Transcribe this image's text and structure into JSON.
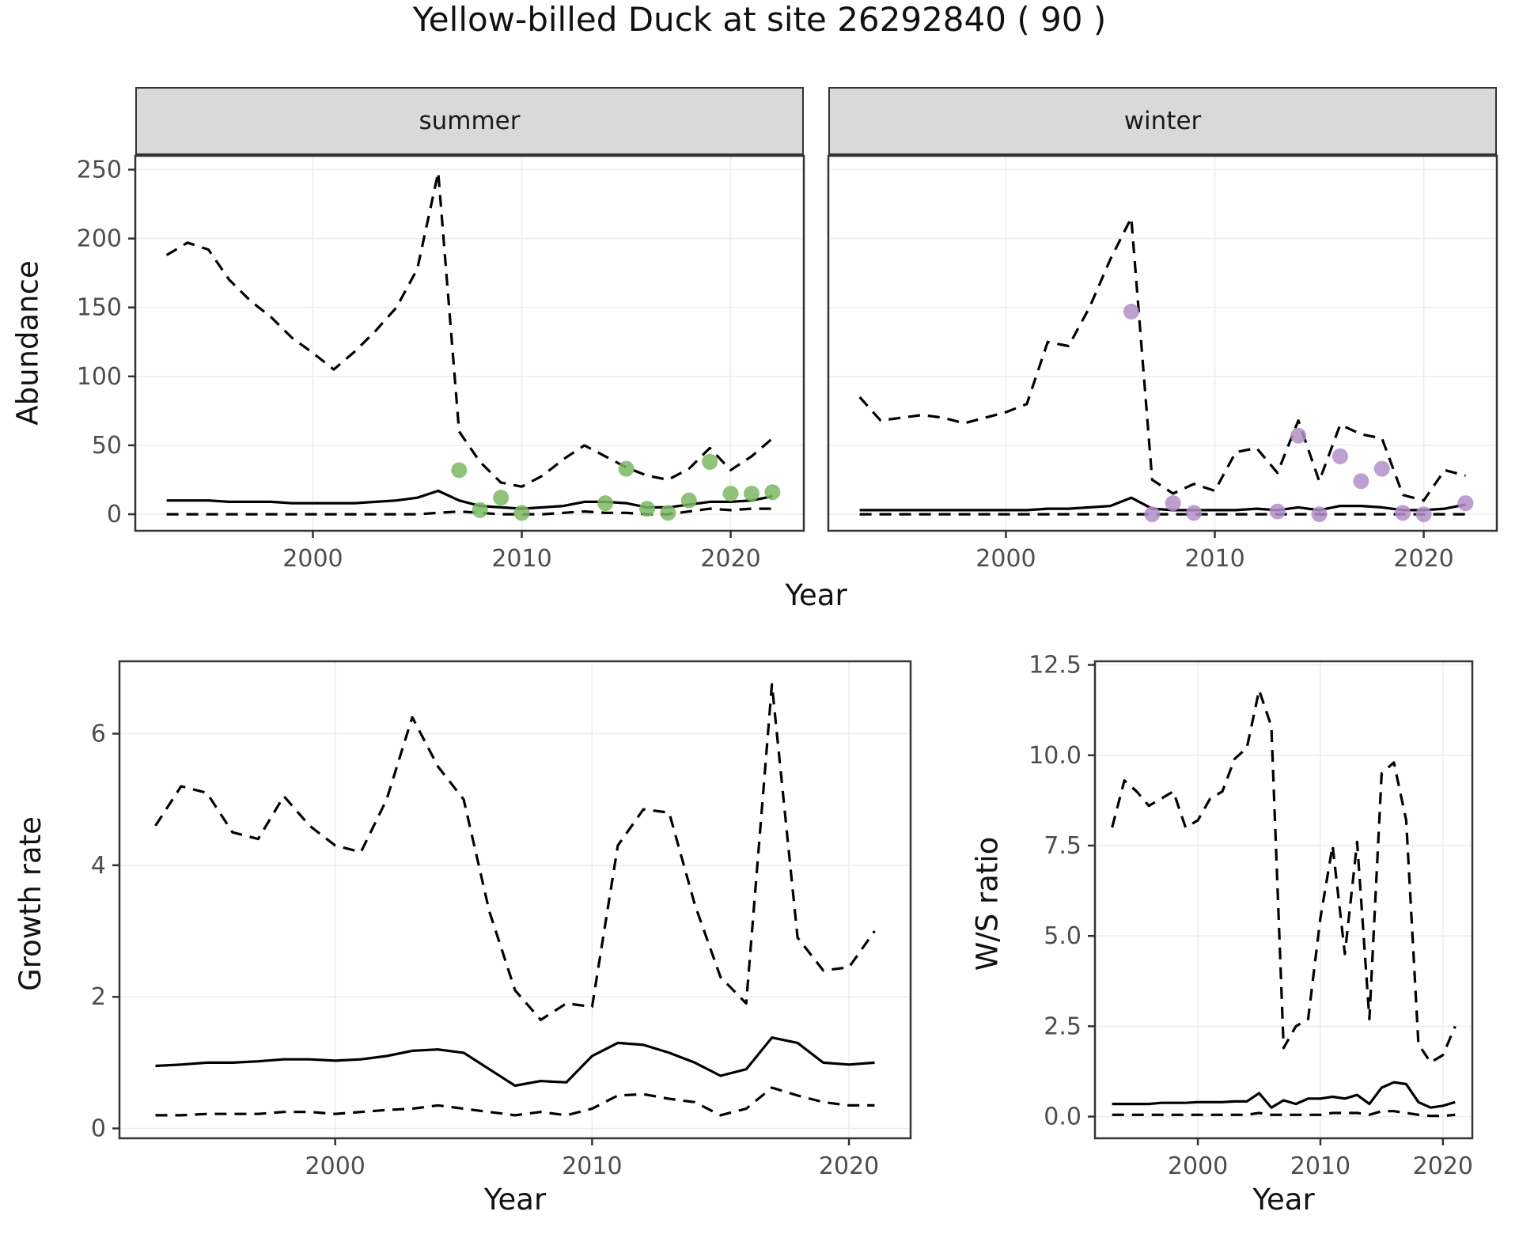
{
  "title": "Yellow-billed Duck at site 26292840 ( 90 )",
  "abundance": {
    "ylabel": "Abundance",
    "xlabel": "Year",
    "facets": [
      "summer",
      "winter"
    ]
  },
  "growth": {
    "ylabel": "Growth rate",
    "xlabel": "Year"
  },
  "ws": {
    "ylabel": "W/S ratio",
    "xlabel": "Year"
  },
  "colors": {
    "summer_points": "#7bb861",
    "winter_points": "#b18fc8",
    "line": "#000000",
    "strip_background": "#d9d9d9",
    "panel_border": "#333333",
    "grid": "#ececec",
    "tick_text": "#4d4d4d"
  },
  "chart_data": [
    {
      "type": "line",
      "title": "summer",
      "xlabel": "Year",
      "ylabel": "Abundance",
      "xlim": [
        1991.5,
        2023.5
      ],
      "ylim": [
        -12,
        260
      ],
      "xticks": [
        2000,
        2010,
        2020
      ],
      "xtick_labels": [
        "2000",
        "2010",
        "2020"
      ],
      "yticks": [
        0,
        50,
        100,
        150,
        200,
        250
      ],
      "ytick_labels": [
        "0",
        "50",
        "100",
        "150",
        "200",
        "250"
      ],
      "series": [
        {
          "name": "upper_ci",
          "style": "dashed",
          "color": "#000000",
          "x": [
            1993,
            1994,
            1995,
            1996,
            1997,
            1998,
            1999,
            2000,
            2001,
            2002,
            2003,
            2004,
            2005,
            2006,
            2007,
            2008,
            2009,
            2010,
            2011,
            2012,
            2013,
            2014,
            2015,
            2016,
            2017,
            2018,
            2019,
            2020,
            2021,
            2022
          ],
          "y": [
            188,
            197,
            192,
            170,
            155,
            143,
            128,
            117,
            105,
            118,
            133,
            150,
            178,
            248,
            60,
            38,
            23,
            20,
            28,
            40,
            50,
            42,
            34,
            28,
            25,
            33,
            48,
            32,
            42,
            55
          ]
        },
        {
          "name": "median",
          "style": "solid",
          "color": "#000000",
          "x": [
            1993,
            1994,
            1995,
            1996,
            1997,
            1998,
            1999,
            2000,
            2001,
            2002,
            2003,
            2004,
            2005,
            2006,
            2007,
            2008,
            2009,
            2010,
            2011,
            2012,
            2013,
            2014,
            2015,
            2016,
            2017,
            2018,
            2019,
            2020,
            2021,
            2022
          ],
          "y": [
            10,
            10,
            10,
            9,
            9,
            9,
            8,
            8,
            8,
            8,
            9,
            10,
            12,
            17,
            10,
            6,
            5,
            4,
            5,
            6,
            9,
            9,
            8,
            5,
            5,
            7,
            9,
            9,
            10,
            13
          ]
        },
        {
          "name": "lower_ci",
          "style": "dashed",
          "color": "#000000",
          "x": [
            1993,
            1994,
            1995,
            1996,
            1997,
            1998,
            1999,
            2000,
            2001,
            2002,
            2003,
            2004,
            2005,
            2006,
            2007,
            2008,
            2009,
            2010,
            2011,
            2012,
            2013,
            2014,
            2015,
            2016,
            2017,
            2018,
            2019,
            2020,
            2021,
            2022
          ],
          "y": [
            0,
            0,
            0,
            0,
            0,
            0,
            0,
            0,
            0,
            0,
            0,
            0,
            0,
            1,
            2,
            1,
            0,
            0,
            0,
            1,
            2,
            1,
            1,
            0,
            0,
            2,
            4,
            3,
            4,
            4
          ]
        },
        {
          "name": "observed_counts",
          "style": "points",
          "color": "#7bb861",
          "x": [
            2007,
            2008,
            2009,
            2010,
            2014,
            2015,
            2016,
            2017,
            2018,
            2019,
            2020,
            2021,
            2022
          ],
          "y": [
            32,
            3,
            12,
            1,
            8,
            33,
            4,
            1,
            10,
            38,
            15,
            15,
            16
          ]
        }
      ]
    },
    {
      "type": "line",
      "title": "winter",
      "xlabel": "Year",
      "ylabel": "Abundance",
      "xlim": [
        1991.5,
        2023.5
      ],
      "ylim": [
        -12,
        260
      ],
      "xticks": [
        2000,
        2010,
        2020
      ],
      "xtick_labels": [
        "2000",
        "2010",
        "2020"
      ],
      "yticks": [
        0,
        50,
        100,
        150,
        200,
        250
      ],
      "ytick_labels": [
        "0",
        "50",
        "100",
        "150",
        "200",
        "250"
      ],
      "series": [
        {
          "name": "upper_ci",
          "style": "dashed",
          "color": "#000000",
          "x": [
            1993,
            1994,
            1995,
            1996,
            1997,
            1998,
            1999,
            2000,
            2001,
            2002,
            2003,
            2004,
            2005,
            2006,
            2007,
            2008,
            2009,
            2010,
            2011,
            2012,
            2013,
            2014,
            2015,
            2016,
            2017,
            2018,
            2019,
            2020,
            2021,
            2022
          ],
          "y": [
            85,
            68,
            70,
            72,
            70,
            66,
            70,
            74,
            80,
            125,
            122,
            150,
            185,
            215,
            25,
            15,
            22,
            17,
            45,
            48,
            30,
            68,
            24,
            65,
            58,
            55,
            14,
            10,
            32,
            28
          ]
        },
        {
          "name": "median",
          "style": "solid",
          "color": "#000000",
          "x": [
            1993,
            1994,
            1995,
            1996,
            1997,
            1998,
            1999,
            2000,
            2001,
            2002,
            2003,
            2004,
            2005,
            2006,
            2007,
            2008,
            2009,
            2010,
            2011,
            2012,
            2013,
            2014,
            2015,
            2016,
            2017,
            2018,
            2019,
            2020,
            2021,
            2022
          ],
          "y": [
            3,
            3,
            3,
            3,
            3,
            3,
            3,
            3,
            3,
            4,
            4,
            5,
            6,
            12,
            4,
            3,
            3,
            3,
            3,
            4,
            3,
            5,
            3,
            6,
            6,
            5,
            3,
            3,
            4,
            7
          ]
        },
        {
          "name": "lower_ci",
          "style": "dashed",
          "color": "#000000",
          "x": [
            1993,
            1994,
            1995,
            1996,
            1997,
            1998,
            1999,
            2000,
            2001,
            2002,
            2003,
            2004,
            2005,
            2006,
            2007,
            2008,
            2009,
            2010,
            2011,
            2012,
            2013,
            2014,
            2015,
            2016,
            2017,
            2018,
            2019,
            2020,
            2021,
            2022
          ],
          "y": [
            0,
            0,
            0,
            0,
            0,
            0,
            0,
            0,
            0,
            0,
            0,
            0,
            0,
            0,
            0,
            0,
            0,
            0,
            0,
            0,
            0,
            0,
            0,
            0,
            0,
            0,
            0,
            0,
            0,
            0
          ]
        },
        {
          "name": "observed_counts",
          "style": "points",
          "color": "#b18fc8",
          "x": [
            2006,
            2007,
            2008,
            2009,
            2013,
            2014,
            2015,
            2016,
            2017,
            2018,
            2019,
            2020,
            2022
          ],
          "y": [
            147,
            0,
            8,
            1,
            2,
            57,
            0,
            42,
            24,
            33,
            1,
            0,
            8
          ]
        }
      ]
    },
    {
      "type": "line",
      "title": "Growth rate",
      "xlabel": "Year",
      "ylabel": "Growth rate",
      "xlim": [
        1991.6,
        2022.4
      ],
      "ylim": [
        -0.15,
        7.1
      ],
      "xticks": [
        2000,
        2010,
        2020
      ],
      "xtick_labels": [
        "2000",
        "2010",
        "2020"
      ],
      "yticks": [
        0,
        2,
        4,
        6
      ],
      "ytick_labels": [
        "0",
        "2",
        "4",
        "6"
      ],
      "series": [
        {
          "name": "upper_ci",
          "style": "dashed",
          "color": "#000000",
          "x": [
            1993,
            1994,
            1995,
            1996,
            1997,
            1998,
            1999,
            2000,
            2001,
            2002,
            2003,
            2004,
            2005,
            2006,
            2007,
            2008,
            2009,
            2010,
            2011,
            2012,
            2013,
            2014,
            2015,
            2016,
            2017,
            2018,
            2019,
            2020,
            2021
          ],
          "y": [
            4.6,
            5.2,
            5.1,
            4.5,
            4.4,
            5.05,
            4.6,
            4.3,
            4.2,
            5.0,
            6.25,
            5.5,
            5.0,
            3.3,
            2.1,
            1.65,
            1.9,
            1.85,
            4.3,
            4.85,
            4.8,
            3.4,
            2.3,
            1.9,
            6.75,
            2.9,
            2.4,
            2.45,
            3.0
          ]
        },
        {
          "name": "median",
          "style": "solid",
          "color": "#000000",
          "x": [
            1993,
            1994,
            1995,
            1996,
            1997,
            1998,
            1999,
            2000,
            2001,
            2002,
            2003,
            2004,
            2005,
            2006,
            2007,
            2008,
            2009,
            2010,
            2011,
            2012,
            2013,
            2014,
            2015,
            2016,
            2017,
            2018,
            2019,
            2020,
            2021
          ],
          "y": [
            0.95,
            0.97,
            1.0,
            1.0,
            1.02,
            1.05,
            1.05,
            1.03,
            1.05,
            1.1,
            1.18,
            1.2,
            1.15,
            0.9,
            0.65,
            0.72,
            0.7,
            1.1,
            1.3,
            1.27,
            1.15,
            1.0,
            0.8,
            0.9,
            1.38,
            1.3,
            1.0,
            0.97,
            1.0
          ]
        },
        {
          "name": "lower_ci",
          "style": "dashed",
          "color": "#000000",
          "x": [
            1993,
            1994,
            1995,
            1996,
            1997,
            1998,
            1999,
            2000,
            2001,
            2002,
            2003,
            2004,
            2005,
            2006,
            2007,
            2008,
            2009,
            2010,
            2011,
            2012,
            2013,
            2014,
            2015,
            2016,
            2017,
            2018,
            2019,
            2020,
            2021
          ],
          "y": [
            0.2,
            0.2,
            0.22,
            0.22,
            0.22,
            0.25,
            0.25,
            0.22,
            0.25,
            0.28,
            0.3,
            0.35,
            0.3,
            0.25,
            0.2,
            0.25,
            0.2,
            0.3,
            0.5,
            0.52,
            0.45,
            0.4,
            0.2,
            0.3,
            0.62,
            0.5,
            0.4,
            0.35,
            0.35
          ]
        }
      ]
    },
    {
      "type": "line",
      "title": "W/S ratio",
      "xlabel": "Year",
      "ylabel": "W/S ratio",
      "xlim": [
        1991.6,
        2022.4
      ],
      "ylim": [
        -0.6,
        12.6
      ],
      "xticks": [
        2000,
        2010,
        2020
      ],
      "xtick_labels": [
        "2000",
        "2010",
        "2020"
      ],
      "yticks": [
        0,
        2.5,
        5,
        7.5,
        10,
        12.5
      ],
      "ytick_labels": [
        "0.0",
        "2.5",
        "5.0",
        "7.5",
        "10.0",
        "12.5"
      ],
      "series": [
        {
          "name": "upper_ci",
          "style": "dashed",
          "color": "#000000",
          "x": [
            1993,
            1994,
            1995,
            1996,
            1997,
            1998,
            1999,
            2000,
            2001,
            2002,
            2003,
            2004,
            2005,
            2006,
            2007,
            2008,
            2009,
            2010,
            2011,
            2012,
            2013,
            2014,
            2015,
            2016,
            2017,
            2018,
            2019,
            2020,
            2021
          ],
          "y": [
            8.0,
            9.3,
            9.0,
            8.6,
            8.8,
            9.0,
            8.0,
            8.2,
            8.8,
            9.0,
            9.9,
            10.2,
            11.8,
            10.8,
            1.9,
            2.5,
            2.7,
            5.5,
            7.5,
            4.5,
            7.6,
            2.7,
            9.5,
            9.8,
            8.2,
            2.0,
            1.5,
            1.7,
            2.5
          ]
        },
        {
          "name": "median",
          "style": "solid",
          "color": "#000000",
          "x": [
            1993,
            1994,
            1995,
            1996,
            1997,
            1998,
            1999,
            2000,
            2001,
            2002,
            2003,
            2004,
            2005,
            2006,
            2007,
            2008,
            2009,
            2010,
            2011,
            2012,
            2013,
            2014,
            2015,
            2016,
            2017,
            2018,
            2019,
            2020,
            2021
          ],
          "y": [
            0.35,
            0.35,
            0.35,
            0.35,
            0.38,
            0.38,
            0.38,
            0.4,
            0.4,
            0.4,
            0.42,
            0.42,
            0.65,
            0.25,
            0.45,
            0.35,
            0.5,
            0.5,
            0.55,
            0.5,
            0.6,
            0.35,
            0.8,
            0.95,
            0.9,
            0.4,
            0.25,
            0.3,
            0.4
          ]
        },
        {
          "name": "lower_ci",
          "style": "dashed",
          "color": "#000000",
          "x": [
            1993,
            1994,
            1995,
            1996,
            1997,
            1998,
            1999,
            2000,
            2001,
            2002,
            2003,
            2004,
            2005,
            2006,
            2007,
            2008,
            2009,
            2010,
            2011,
            2012,
            2013,
            2014,
            2015,
            2016,
            2017,
            2018,
            2019,
            2020,
            2021
          ],
          "y": [
            0.05,
            0.05,
            0.05,
            0.05,
            0.05,
            0.05,
            0.05,
            0.05,
            0.05,
            0.05,
            0.05,
            0.05,
            0.1,
            0.05,
            0.05,
            0.05,
            0.05,
            0.05,
            0.1,
            0.1,
            0.1,
            0.05,
            0.15,
            0.15,
            0.1,
            0.05,
            0.02,
            0.02,
            0.05
          ]
        }
      ]
    }
  ]
}
